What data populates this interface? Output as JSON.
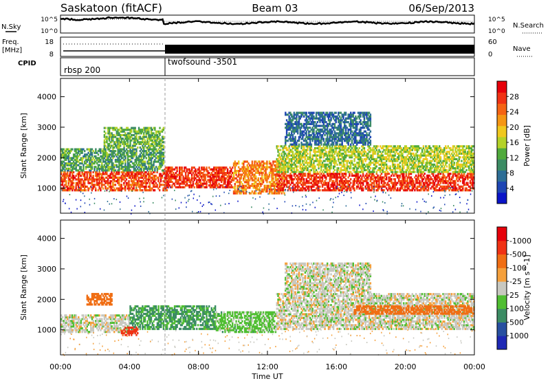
{
  "header": {
    "station": "Saskatoon (fitACF)",
    "beam": "Beam 03",
    "date": "06/Sep/2013"
  },
  "strips": {
    "nsky_label": "N.Sky",
    "nsearch_label": "N.Search",
    "noise_ticks": [
      "10^5",
      "10^0"
    ],
    "freq_label_1": "Freq.",
    "freq_label_2": "[MHz]",
    "freq_ticks": [
      "18",
      "8"
    ],
    "nave_label": "Nave",
    "nave_ticks": [
      "60",
      "0"
    ],
    "cpid_label": "CPID",
    "cpid_segments": [
      {
        "name": "rbsp 200",
        "start_hour": 0,
        "end_hour": 6
      },
      {
        "name": "twofsound -3501",
        "start_hour": 6,
        "end_hour": 24
      }
    ]
  },
  "axes": {
    "x_ticks": [
      "00:00",
      "04:00",
      "08:00",
      "12:00",
      "16:00",
      "20:00",
      "00:00"
    ],
    "x_label": "Time UT",
    "y_ticks": [
      "1000",
      "2000",
      "3000",
      "4000"
    ],
    "y_label": "Slant Range [km]"
  },
  "chart_data": [
    {
      "type": "heatmap",
      "title": "",
      "xlabel": "Time UT",
      "ylabel": "Slant Range [km]",
      "xlim": [
        0,
        24
      ],
      "ylim": [
        180,
        4600
      ],
      "colorbar_label": "Power [dB]",
      "colorbar_ticks": [
        "4",
        "8",
        "12",
        "16",
        "20",
        "24",
        "28"
      ],
      "colorbar_colors": [
        "#0a14c8",
        "#1e46b4",
        "#2d6e96",
        "#3c8c64",
        "#50aa3c",
        "#b4d228",
        "#f0c81e",
        "#f59614",
        "#f56414",
        "#f03214",
        "#e6000a"
      ],
      "regions": [
        {
          "t0": 0.0,
          "t1": 6.2,
          "r0": 900,
          "r1": 1550,
          "level": 0.85
        },
        {
          "t0": 0.0,
          "t1": 6.0,
          "r0": 1550,
          "r1": 2300,
          "level": 0.35
        },
        {
          "t0": 6.0,
          "t1": 10.0,
          "r0": 1000,
          "r1": 1700,
          "level": 0.9
        },
        {
          "t0": 2.5,
          "t1": 6.0,
          "r0": 2300,
          "r1": 3000,
          "level": 0.4
        },
        {
          "t0": 10.0,
          "t1": 13.0,
          "r0": 800,
          "r1": 1900,
          "level": 0.75
        },
        {
          "t0": 12.5,
          "t1": 24.0,
          "r0": 900,
          "r1": 1500,
          "level": 0.9
        },
        {
          "t0": 12.5,
          "t1": 24.0,
          "r0": 1500,
          "r1": 2400,
          "level": 0.5
        },
        {
          "t0": 13.0,
          "t1": 18.0,
          "r0": 2400,
          "r1": 3500,
          "level": 0.2
        }
      ]
    },
    {
      "type": "heatmap",
      "title": "",
      "xlabel": "Time UT",
      "ylabel": "Slant Range [km]",
      "xlim": [
        0,
        24
      ],
      "ylim": [
        180,
        4600
      ],
      "colorbar_label": "Velocity [m s^-1]",
      "colorbar_ticks": [
        "1000",
        "500",
        "100",
        "25",
        "-25",
        "-100",
        "-500",
        "-1000"
      ],
      "colorbar_colors": [
        "#1e28b4",
        "#2850a0",
        "#3c8c64",
        "#50be32",
        "#c8c8c0",
        "#f5a03c",
        "#f06e14",
        "#f03214",
        "#e6000a"
      ],
      "regions": [
        {
          "t0": 0.0,
          "t1": 4.0,
          "r0": 900,
          "r1": 1500,
          "velocity": 0
        },
        {
          "t0": 1.5,
          "t1": 3.0,
          "r0": 1800,
          "r1": 2200,
          "velocity": -300
        },
        {
          "t0": 4.0,
          "t1": 9.0,
          "r0": 1000,
          "r1": 1800,
          "velocity": 200
        },
        {
          "t0": 3.5,
          "t1": 4.5,
          "r0": 800,
          "r1": 1100,
          "velocity": -500
        },
        {
          "t0": 9.0,
          "t1": 12.5,
          "r0": 900,
          "r1": 1600,
          "velocity": 100
        },
        {
          "t0": 12.5,
          "t1": 24.0,
          "r0": 1000,
          "r1": 2200,
          "velocity": 0
        },
        {
          "t0": 13.0,
          "t1": 18.0,
          "r0": 2200,
          "r1": 3200,
          "velocity": 0
        },
        {
          "t0": 17.0,
          "t1": 24.0,
          "r0": 1500,
          "r1": 1800,
          "velocity": -300
        }
      ]
    }
  ]
}
